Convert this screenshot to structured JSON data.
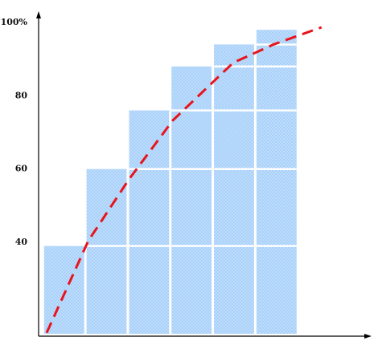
{
  "chart_data": {
    "type": "bar",
    "categories": [
      null,
      null,
      null,
      null,
      null,
      null
    ],
    "values": [
      39,
      60,
      76,
      88,
      94,
      98
    ],
    "color": "#a9d1fa",
    "ylim": [
      14.6,
      102.2
    ],
    "yticks": [
      {
        "value": 100,
        "label": "100%"
      },
      80,
      60,
      40
    ],
    "xlim": [
      -0.11,
      7.69
    ],
    "curve": {
      "color": "#e8141c",
      "x": [
        0.08,
        1.06,
        2.0,
        3.05,
        4.47,
        5.42,
        6.55
      ],
      "values": [
        15.3,
        40.4,
        56.9,
        73.3,
        89,
        94,
        98.7
      ]
    }
  }
}
